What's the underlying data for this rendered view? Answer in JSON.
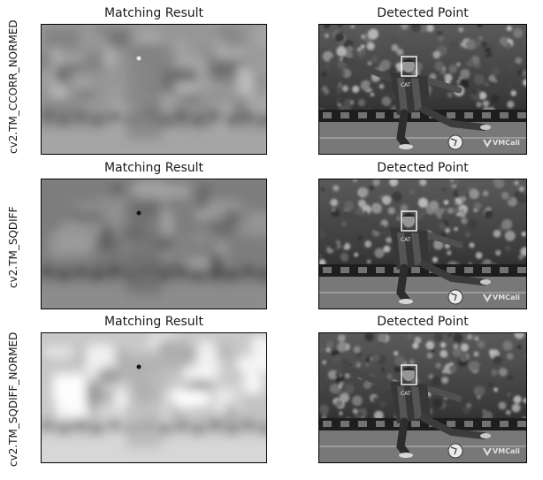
{
  "rows": [
    {
      "method": "cv2.TM_CCORR_NORMED",
      "left_title": "Matching Result",
      "right_title": "Detected Point",
      "result_tone": "mid"
    },
    {
      "method": "cv2.TM_SQDIFF",
      "left_title": "Matching Result",
      "right_title": "Detected Point",
      "result_tone": "dark"
    },
    {
      "method": "cv2.TM_SQDIFF_NORMED",
      "left_title": "Matching Result",
      "right_title": "Detected Point",
      "result_tone": "bright"
    }
  ],
  "photo": {
    "jersey_text": "CAT",
    "watermark": "VMCali"
  },
  "colors": {
    "frame": "#000000",
    "detection_box": "#ffffff"
  }
}
